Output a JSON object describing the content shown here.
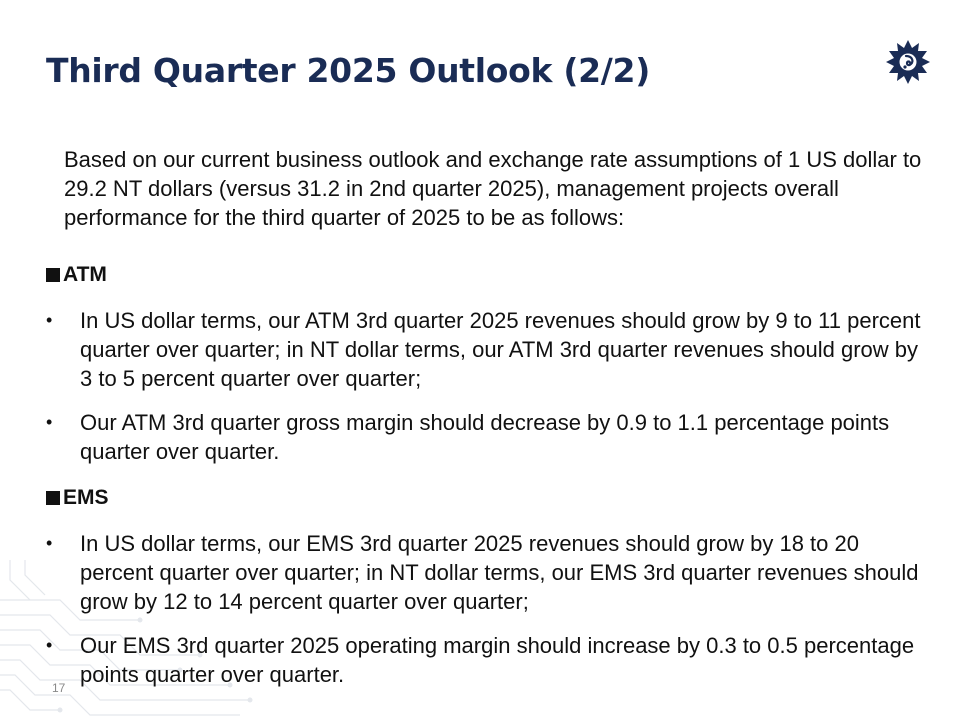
{
  "slide": {
    "title": "Third Quarter 2025 Outlook (2/2)",
    "intro": "Based on our current business outlook and exchange rate assumptions of 1 US dollar to 29.2 NT dollars (versus 31.2 in 2nd quarter 2025), management projects overall performance for the third quarter of 2025 to be as follows:",
    "page_number": "17",
    "bullet_symbol": "•"
  },
  "sections": [
    {
      "heading": "ATM",
      "bullets": [
        "In US dollar terms, our ATM  3rd quarter 2025 revenues should grow by 9 to 11 percent quarter over quarter; in NT dollar terms, our ATM 3rd quarter revenues should grow by 3 to 5 percent quarter over quarter;",
        "Our ATM 3rd quarter gross margin should decrease by 0.9 to 1.1 percentage points quarter over quarter."
      ]
    },
    {
      "heading": "EMS",
      "bullets": [
        "In US dollar terms, our EMS  3rd quarter 2025 revenues should grow by 18 to 20 percent quarter over quarter; in NT dollar terms, our EMS 3rd quarter revenues should grow by 12 to 14 percent quarter over quarter;",
        "Our EMS 3rd quarter 2025 operating margin should increase by 0.3 to 0.5 percentage points quarter over quarter."
      ]
    }
  ],
  "colors": {
    "title": "#1a2c55",
    "body_text": "#111111",
    "logo": "#1a2c55",
    "page_number": "#8a8a8a",
    "circuit_lines": "#e4e7ec"
  },
  "icons": {
    "logo": "company-logo-icon",
    "section_marker": "black-square-icon"
  }
}
